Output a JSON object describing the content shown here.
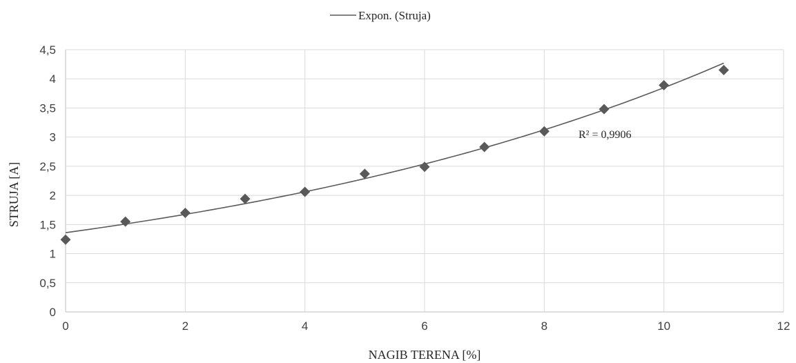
{
  "chart_data": {
    "type": "scatter",
    "xlabel": "NAGIB TERENA [%]",
    "ylabel": "STRUJA [A]",
    "xlim": [
      0,
      12
    ],
    "ylim": [
      0,
      4.5
    ],
    "x_ticks": [
      "0",
      "2",
      "4",
      "6",
      "8",
      "10",
      "12"
    ],
    "y_ticks": [
      "0",
      "0,5",
      "1",
      "1,5",
      "2",
      "2,5",
      "3",
      "3,5",
      "4",
      "4,5"
    ],
    "grid": "vertical and horizontal gridlines",
    "legend": {
      "position": "top-center",
      "entries": [
        "Expon. (Struja)"
      ]
    },
    "series": [
      {
        "marker": "diamond",
        "color": "#595959",
        "x": [
          0,
          1,
          2,
          3,
          4,
          5,
          6,
          7,
          8,
          9,
          10,
          11
        ],
        "y": [
          1.24,
          1.55,
          1.7,
          1.94,
          2.06,
          2.37,
          2.49,
          2.83,
          3.1,
          3.48,
          3.89,
          4.15
        ]
      }
    ],
    "trendline": {
      "type": "exponential",
      "color": "#595959",
      "a": 1.36,
      "b": 0.104,
      "x_range": [
        0,
        11
      ],
      "r_squared_label": "R² = 0,9906"
    }
  }
}
